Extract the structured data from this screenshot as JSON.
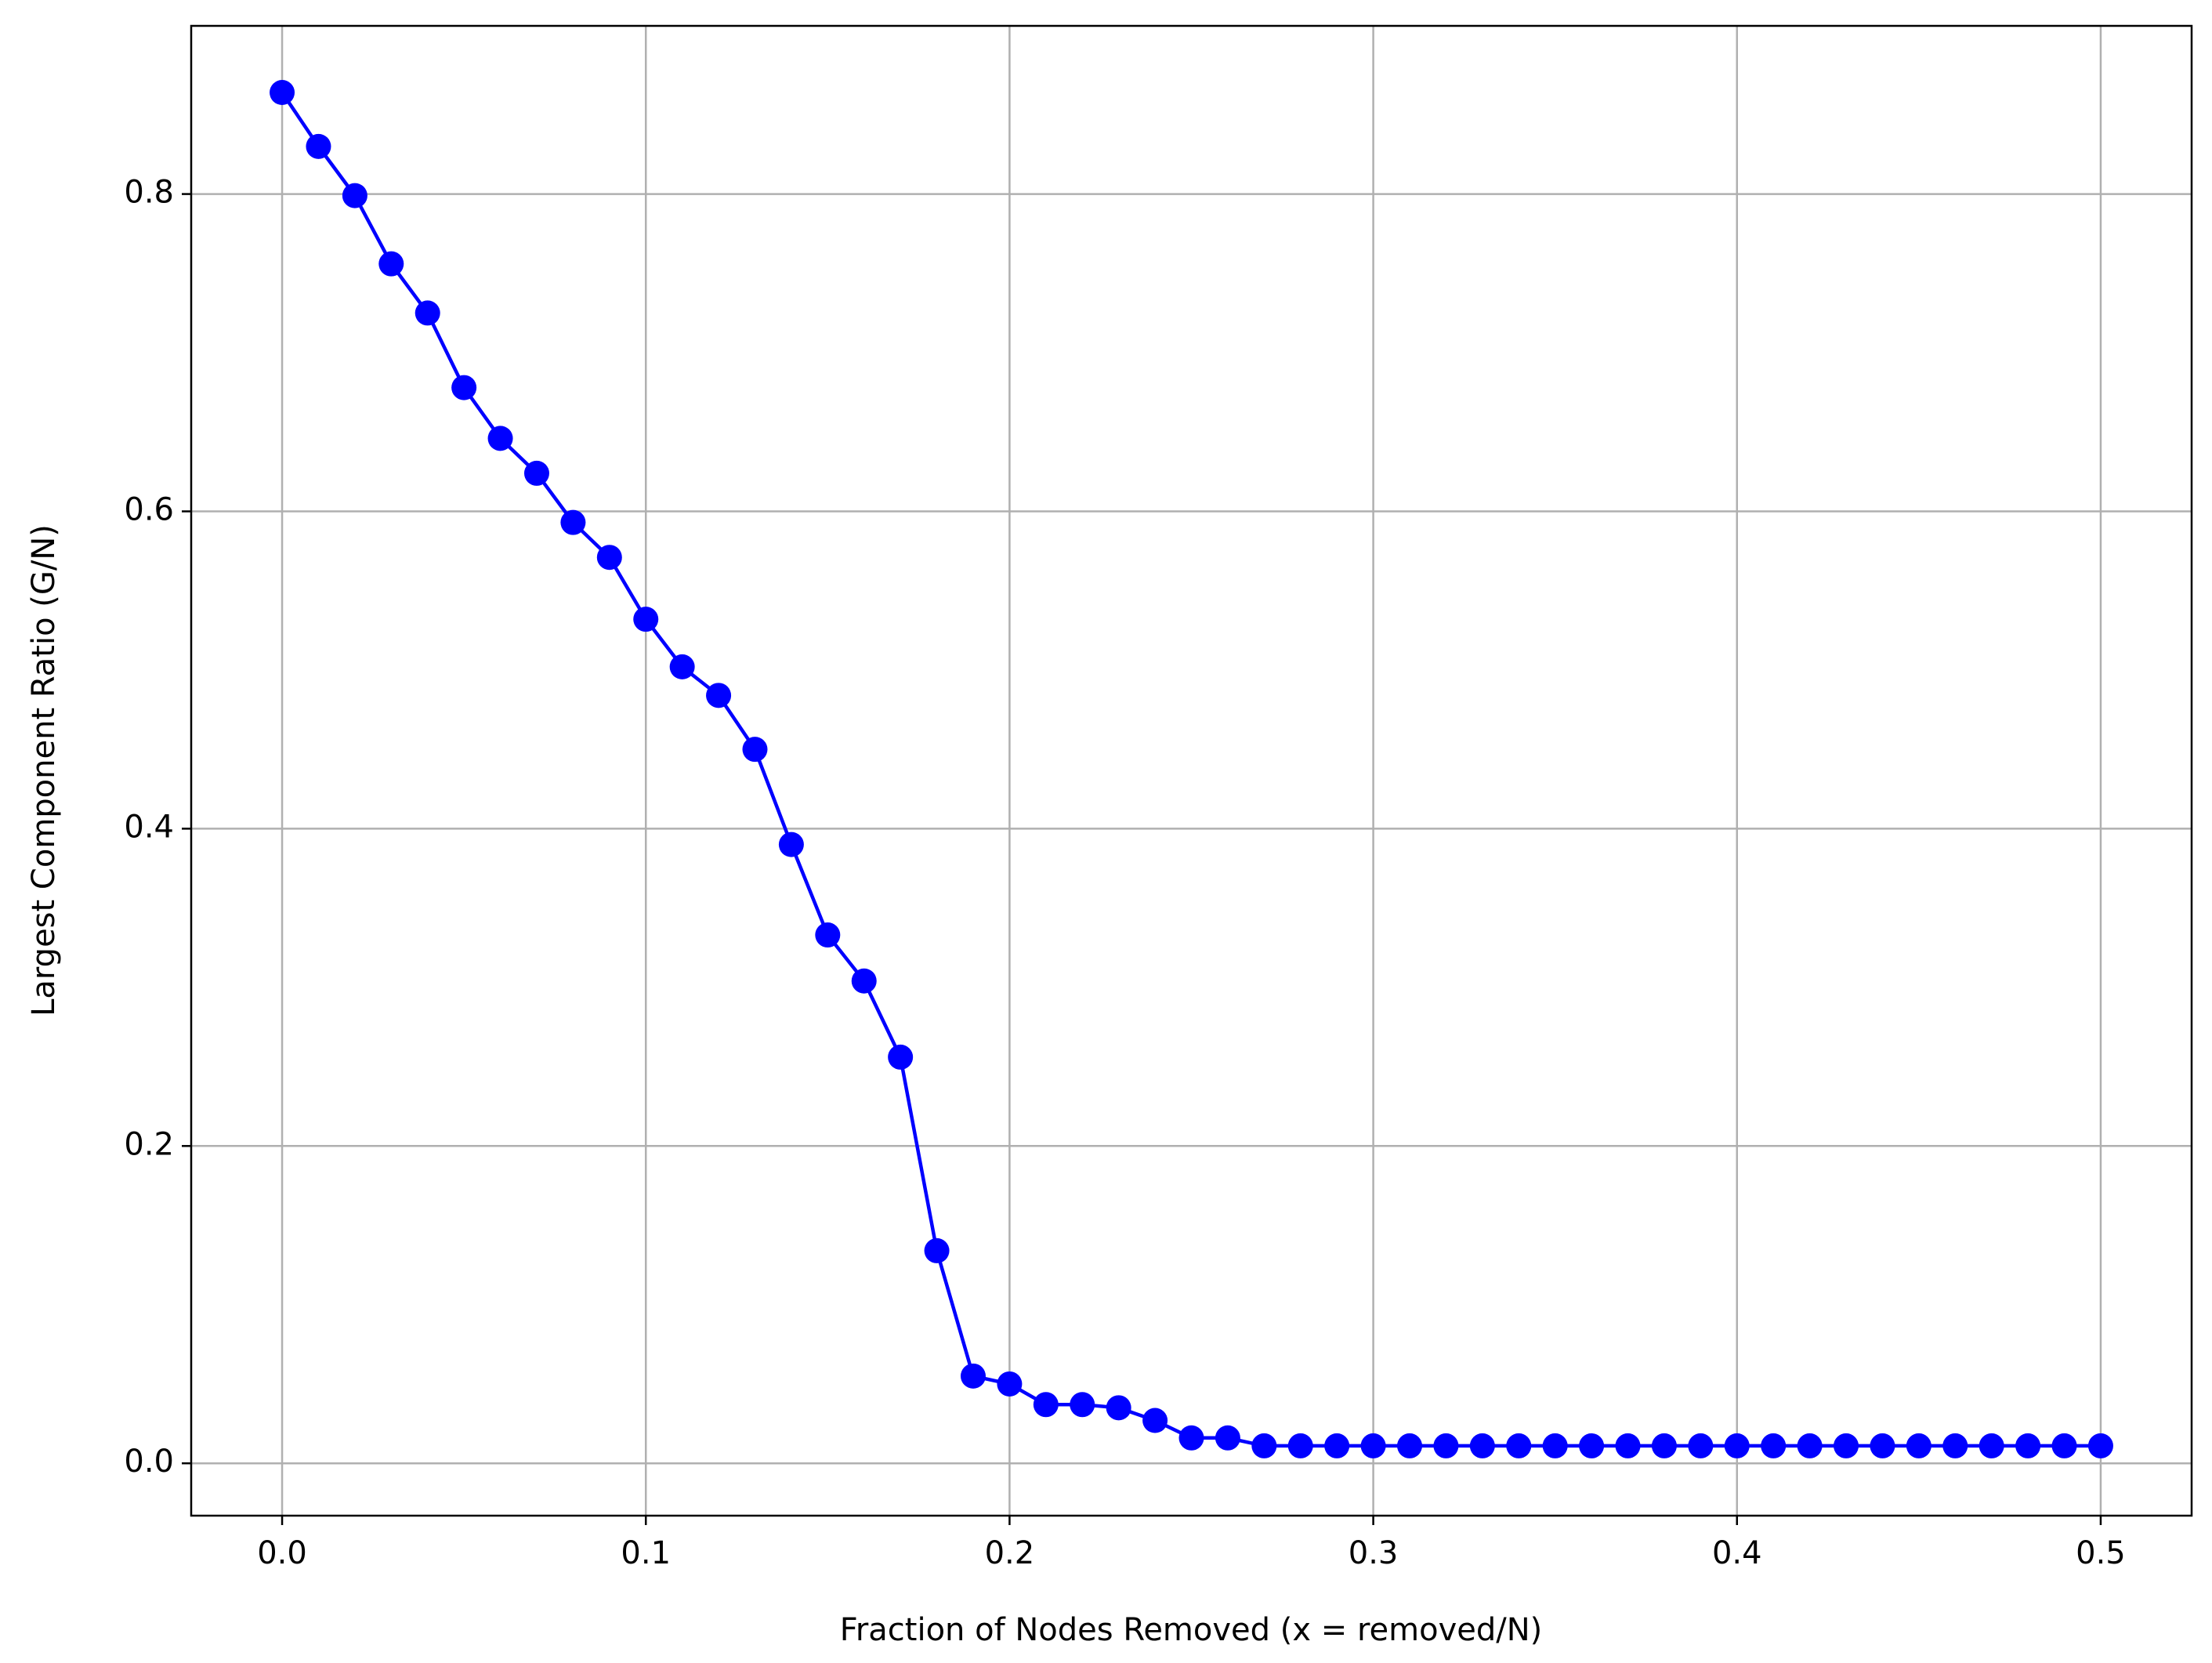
{
  "chart_data": {
    "type": "line",
    "x_label": "Fraction of Nodes Removed (x = removed/N)",
    "y_label": "Largest Component Ratio (G/N)",
    "x": [
      0,
      0.01,
      0.02,
      0.03,
      0.04,
      0.05,
      0.06,
      0.07,
      0.08,
      0.09,
      0.1,
      0.11,
      0.12,
      0.13,
      0.14,
      0.15,
      0.16,
      0.17,
      0.18,
      0.19,
      0.2,
      0.21,
      0.22,
      0.23,
      0.24,
      0.25,
      0.26,
      0.27,
      0.28,
      0.29,
      0.3,
      0.31,
      0.32,
      0.33,
      0.34,
      0.35,
      0.36,
      0.37,
      0.38,
      0.39,
      0.4,
      0.41,
      0.42,
      0.43,
      0.44,
      0.45,
      0.46,
      0.47,
      0.48,
      0.49,
      0.5
    ],
    "values": [
      0.864,
      0.83,
      0.799,
      0.756,
      0.725,
      0.678,
      0.646,
      0.624,
      0.593,
      0.571,
      0.532,
      0.502,
      0.484,
      0.45,
      0.39,
      0.333,
      0.304,
      0.256,
      0.134,
      0.055,
      0.05,
      0.037,
      0.037,
      0.035,
      0.027,
      0.016,
      0.016,
      0.011,
      0.011,
      0.011,
      0.011,
      0.011,
      0.011,
      0.011,
      0.011,
      0.011,
      0.011,
      0.011,
      0.011,
      0.011,
      0.011,
      0.011,
      0.011,
      0.011,
      0.011,
      0.011,
      0.011,
      0.011,
      0.011,
      0.011,
      0.011
    ],
    "color": "#0000ff",
    "xlim": [
      -0.025,
      0.525
    ],
    "ylim": [
      -0.033,
      0.906
    ],
    "xticks": [
      {
        "value": 0,
        "label": "0.0"
      },
      0.1,
      0.2,
      0.3,
      0.4,
      0.5
    ],
    "yticks": [
      {
        "value": 0,
        "label": "0.0"
      },
      0.2,
      0.4,
      0.6,
      0.8
    ],
    "grid": true
  }
}
